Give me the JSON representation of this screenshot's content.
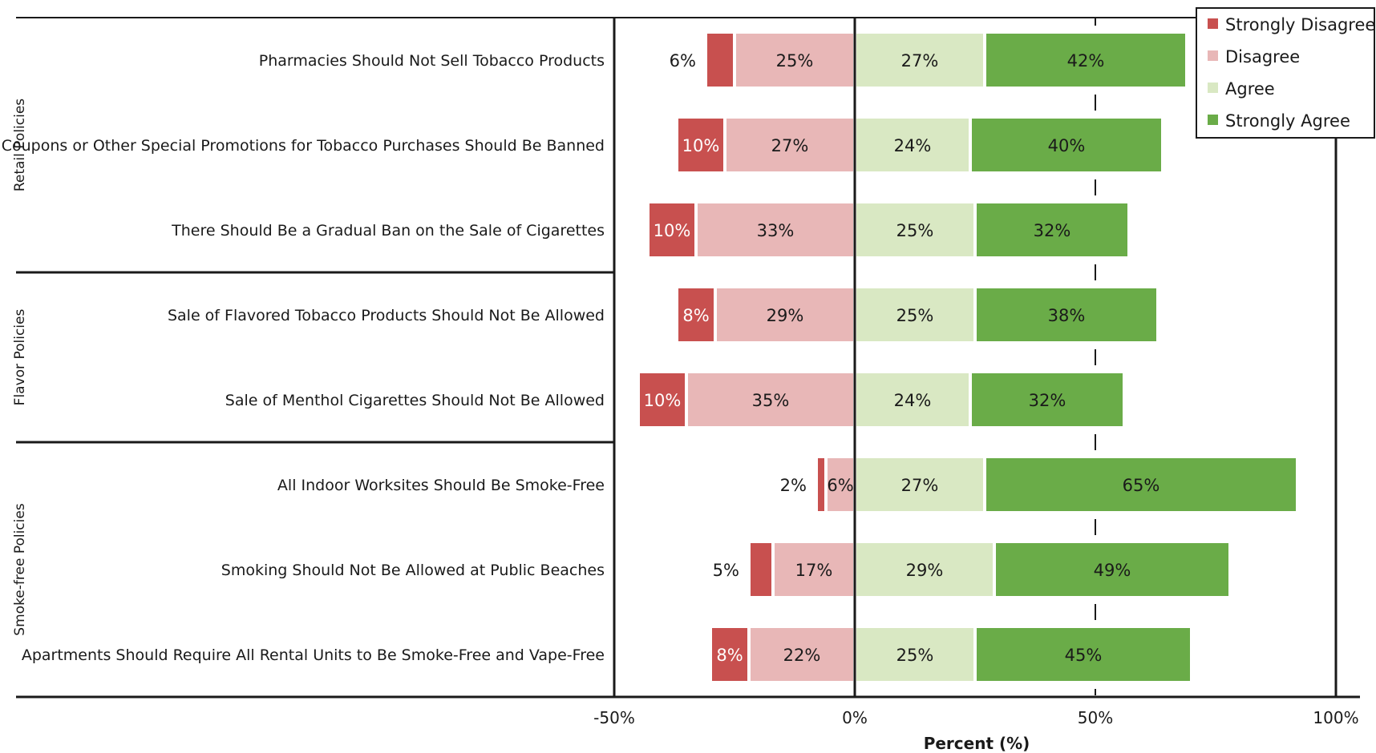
{
  "chart_data": {
    "type": "bar",
    "orientation": "horizontal",
    "stacked": "diverging",
    "xlabel": "Percent (%)",
    "xlim": [
      -50,
      100
    ],
    "x_ticks": [
      {
        "value": -50,
        "label": "-50%"
      },
      {
        "value": 0,
        "label": "0%"
      },
      {
        "value": 50,
        "label": "50%"
      },
      {
        "value": 100,
        "label": "100%"
      }
    ],
    "groups": [
      {
        "label": "Retail Policies",
        "start": 0,
        "end": 2
      },
      {
        "label": "Flavor Policies",
        "start": 3,
        "end": 4
      },
      {
        "label": "Smoke-free Policies",
        "start": 5,
        "end": 7
      }
    ],
    "categories": [
      "Pharmacies Should Not Sell Tobacco Products",
      "Coupons or Other Special Promotions for Tobacco Purchases Should Be Banned",
      "There Should Be a Gradual Ban on the Sale of Cigarettes",
      "Sale of Flavored Tobacco Products Should Not Be Allowed",
      "Sale of Menthol Cigarettes Should Not Be Allowed",
      "All Indoor Worksites Should Be Smoke-Free",
      "Smoking Should Not Be Allowed at Public Beaches",
      "Apartments Should Require All Rental Units to Be Smoke-Free and Vape-Free"
    ],
    "series": [
      {
        "name": "Strongly Disagree",
        "side": "negative",
        "color": "#c8504f",
        "values": [
          6,
          10,
          10,
          8,
          10,
          2,
          5,
          8
        ]
      },
      {
        "name": "Disagree",
        "side": "negative",
        "color": "#e8b7b7",
        "values": [
          25,
          27,
          33,
          29,
          35,
          6,
          17,
          22
        ]
      },
      {
        "name": "Agree",
        "side": "positive",
        "color": "#d9e8c3",
        "values": [
          27,
          24,
          25,
          25,
          24,
          27,
          29,
          25
        ]
      },
      {
        "name": "Strongly Agree",
        "side": "positive",
        "color": "#6aac48",
        "values": [
          42,
          40,
          32,
          38,
          32,
          65,
          49,
          45
        ]
      }
    ],
    "legend_position": "top-right",
    "grid": false
  }
}
